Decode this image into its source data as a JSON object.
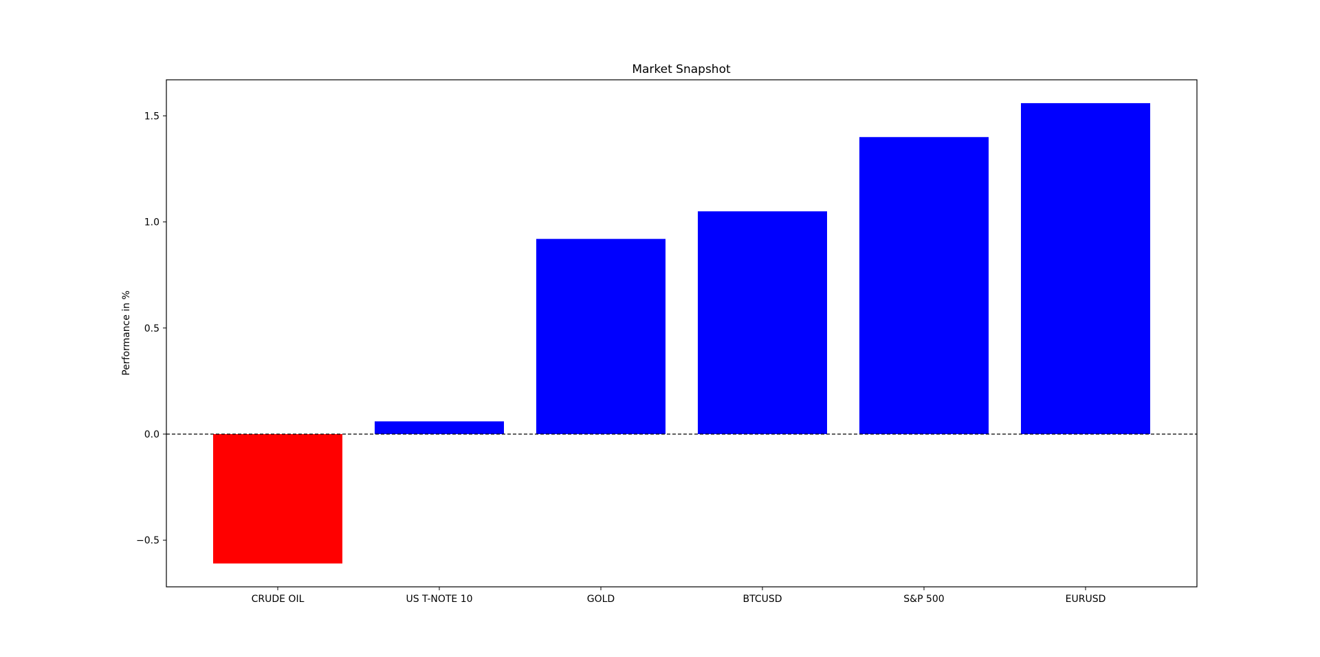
{
  "chart_data": {
    "type": "bar",
    "title": "Market Snapshot",
    "xlabel": "",
    "ylabel": "Performance in %",
    "categories": [
      "CRUDE OIL",
      "US T-NOTE 10",
      "GOLD",
      "BTCUSD",
      "S&P 500",
      "EURUSD"
    ],
    "values": [
      -0.61,
      0.06,
      0.92,
      1.05,
      1.4,
      1.56
    ],
    "colors": [
      "#ff0000",
      "#0000ff",
      "#0000ff",
      "#0000ff",
      "#0000ff",
      "#0000ff"
    ],
    "ylim": [
      -0.72,
      1.67
    ],
    "yticks": [
      -0.5,
      0.0,
      0.5,
      1.0,
      1.5
    ],
    "ytick_labels": [
      "−0.5",
      "0.0",
      "0.5",
      "1.0",
      "1.5"
    ],
    "zero_line": "dashed",
    "grid": false,
    "legend": false
  }
}
